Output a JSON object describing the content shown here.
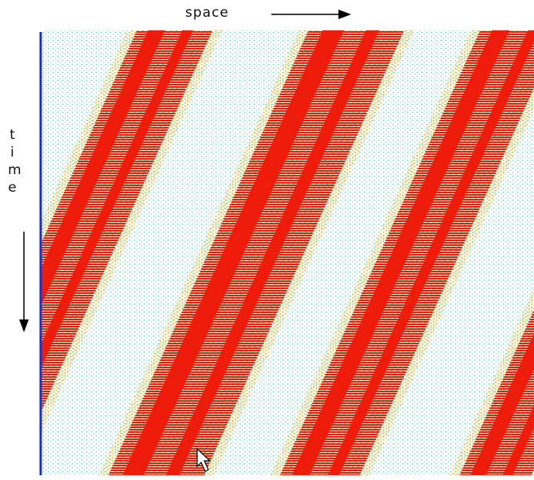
{
  "header": {
    "space_label": "space",
    "time_label": "time"
  }
}
